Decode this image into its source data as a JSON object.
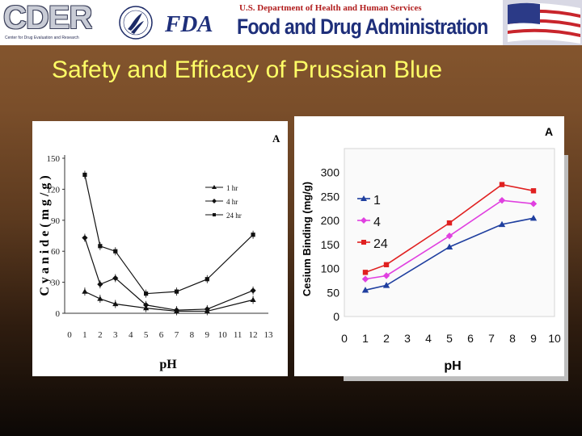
{
  "banner": {
    "cder_word": "CDER",
    "cder_sub": "Center for Drug Evaluation and Research",
    "hhs_text": "U.S. Department of Health and Human Services",
    "fda_mark": "FDA",
    "agency_name": "Food and Drug Administration",
    "icons": [
      "cder-logo",
      "hhs-seal-icon",
      "fda-logo",
      "us-flag-icon"
    ]
  },
  "slide": {
    "title": "Safety and Efficacy of Prussian Blue"
  },
  "chart_data": [
    {
      "type": "line",
      "panel": "A",
      "xlabel": "pH",
      "ylabel": "C y a n i d e  ( m g / g )",
      "x_ticks": [
        "0",
        "1",
        "2",
        "3",
        "4",
        "5",
        "6",
        "7",
        "8",
        "9",
        "10",
        "11",
        "12",
        "13"
      ],
      "y_ticks": [
        "0",
        "30",
        "60",
        "90",
        "120",
        "150"
      ],
      "xlim": [
        0,
        13
      ],
      "ylim": [
        0,
        150
      ],
      "legend_position": "top-right",
      "series": [
        {
          "name": "1 hr",
          "marker": "triangle",
          "x": [
            1,
            2,
            3,
            5,
            7,
            9,
            12
          ],
          "y": [
            21,
            14,
            9,
            5,
            2,
            2,
            13
          ]
        },
        {
          "name": "4 hr",
          "marker": "diamond",
          "x": [
            1,
            2,
            3,
            5,
            7,
            9,
            12
          ],
          "y": [
            73,
            28,
            34,
            8,
            3,
            4,
            22
          ]
        },
        {
          "name": "24 hr",
          "marker": "square",
          "x": [
            1,
            2,
            3,
            5,
            7,
            9,
            12
          ],
          "y": [
            134,
            65,
            60,
            19,
            21,
            33,
            76
          ]
        }
      ]
    },
    {
      "type": "line",
      "panel": "A",
      "xlabel": "pH",
      "ylabel": "Cesium Binding (mg/g)",
      "x_ticks": [
        "0",
        "1",
        "2",
        "3",
        "4",
        "5",
        "6",
        "7",
        "8",
        "9",
        "10"
      ],
      "y_ticks": [
        "0",
        "50",
        "100",
        "150",
        "200",
        "250",
        "300"
      ],
      "xlim": [
        0,
        10
      ],
      "ylim": [
        0,
        350
      ],
      "legend_position": "top-left",
      "colors": {
        "1": "#1f3f9f",
        "4": "#e040e0",
        "24": "#e02020"
      },
      "series": [
        {
          "name": "1",
          "marker": "triangle",
          "x": [
            1,
            2,
            5,
            7.5,
            9
          ],
          "y": [
            55,
            65,
            145,
            192,
            205
          ]
        },
        {
          "name": "4",
          "marker": "diamond",
          "x": [
            1,
            2,
            5,
            7.5,
            9
          ],
          "y": [
            78,
            85,
            168,
            242,
            235
          ]
        },
        {
          "name": "24",
          "marker": "square",
          "x": [
            1,
            2,
            5,
            7.5,
            9
          ],
          "y": [
            92,
            108,
            195,
            275,
            262
          ]
        }
      ]
    }
  ]
}
